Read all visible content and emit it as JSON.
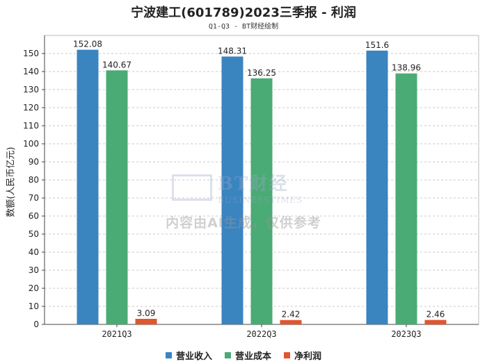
{
  "chart_data": {
    "type": "bar",
    "title": "宁波建工(601789)2023三季报 - 利润",
    "subtitle": "Q1-Q3 - BT财经绘制",
    "ylabel": "数额(人民币亿元)",
    "xlabel": "",
    "categories": [
      "2021Q3",
      "2022Q3",
      "2023Q3"
    ],
    "ylim": [
      0,
      160
    ],
    "yticks": [
      0,
      10,
      20,
      30,
      40,
      50,
      60,
      70,
      80,
      90,
      100,
      110,
      120,
      130,
      140,
      150
    ],
    "grid": true,
    "legend_position": "bottom",
    "series": [
      {
        "name": "营业收入",
        "color": "#3a84c0",
        "values": [
          152.08,
          148.31,
          151.6
        ],
        "labels": [
          "152.08",
          "148.31",
          "151.6"
        ]
      },
      {
        "name": "营业成本",
        "color": "#4aab75",
        "values": [
          140.67,
          136.25,
          138.96
        ],
        "labels": [
          "140.67",
          "136.25",
          "138.96"
        ]
      },
      {
        "name": "净利润",
        "color": "#e0562e",
        "values": [
          3.09,
          2.42,
          2.46
        ],
        "labels": [
          "3.09",
          "2.42",
          "2.46"
        ]
      }
    ]
  },
  "watermark": {
    "brand": "BT财经",
    "brand_sub": "BUSINESSTIMES",
    "note": "内容由AI生成，仅供参考"
  }
}
